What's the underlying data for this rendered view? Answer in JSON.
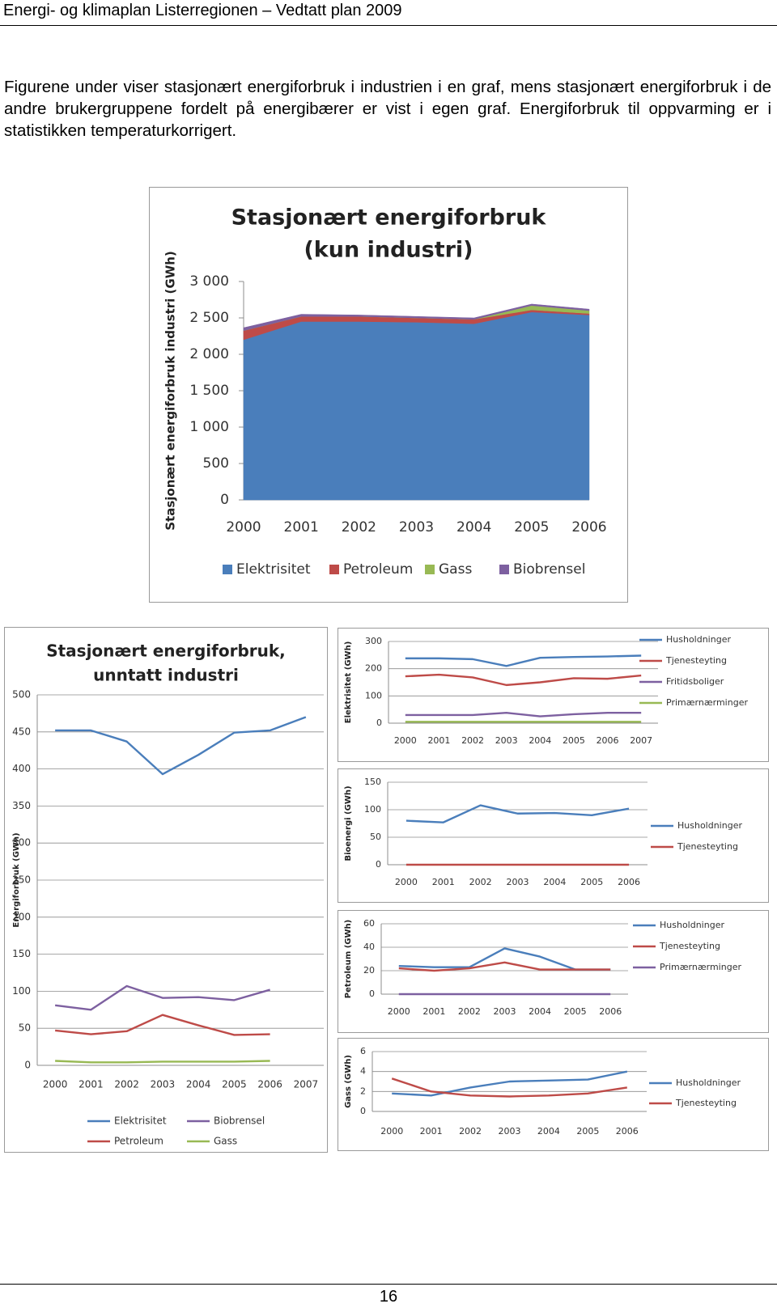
{
  "header": {
    "title": "Energi- og klimaplan Listerregionen – Vedtatt plan 2009"
  },
  "paragraph": "Figurene under viser stasjonært energiforbruk i industrien i en graf, mens stasjonært energiforbruk i de andre brukergruppene fordelt på energibærer er vist i egen graf. Energiforbruk til oppvarming er i statistikken temperaturkorrigert.",
  "page_number": "16",
  "chart_data": [
    {
      "type": "area",
      "stacked": true,
      "title": [
        "Stasjonært energiforbruk",
        "(kun industri)"
      ],
      "y_label": "Stasjonært energiforbruk industri (GWh)",
      "categories": [
        "2000",
        "2001",
        "2002",
        "2003",
        "2004",
        "2005",
        "2006"
      ],
      "series": [
        {
          "name": "Elektrisitet",
          "color": "#4a7ebb",
          "values": [
            2200,
            2450,
            2450,
            2440,
            2420,
            2580,
            2540
          ]
        },
        {
          "name": "Petroleum",
          "color": "#be4b48",
          "values": [
            125,
            70,
            70,
            60,
            60,
            30,
            20
          ]
        },
        {
          "name": "Gass",
          "color": "#98b954",
          "values": [
            0,
            0,
            0,
            0,
            0,
            60,
            40
          ]
        },
        {
          "name": "Biobrensel",
          "color": "#7d60a0",
          "values": [
            40,
            30,
            20,
            20,
            20,
            20,
            20
          ]
        }
      ],
      "ylim": [
        0,
        3000
      ],
      "yticks": [
        0,
        500,
        {
          "value": 1000,
          "label": "1 000"
        },
        {
          "value": 1500,
          "label": "1 500"
        },
        {
          "value": 2000,
          "label": "2 000"
        },
        {
          "value": 2500,
          "label": "2 500"
        },
        {
          "value": 3000,
          "label": "3 000"
        }
      ],
      "grid": false,
      "legend": "bottom"
    },
    {
      "type": "line",
      "title": [
        "Stasjonært energiforbruk,",
        "unntatt industri"
      ],
      "y_label": "Energiforbruk (GWh)",
      "categories": [
        "2000",
        "2001",
        "2002",
        "2003",
        "2004",
        "2005",
        "2006",
        "2007"
      ],
      "series": [
        {
          "name": "Elektrisitet",
          "color": "#4a7ebb",
          "values": [
            452,
            452,
            437,
            393,
            419,
            449,
            452,
            470
          ]
        },
        {
          "name": "Petroleum",
          "color": "#be4b48",
          "values": [
            47,
            42,
            46,
            68,
            54,
            41,
            42,
            null
          ]
        },
        {
          "name": "Biobrensel",
          "color": "#7d60a0",
          "values": [
            81,
            75,
            107,
            91,
            92,
            88,
            102,
            null
          ]
        },
        {
          "name": "Gass",
          "color": "#98b954",
          "values": [
            6,
            4,
            4,
            5,
            5,
            5,
            6,
            null
          ]
        }
      ],
      "ylim": [
        0,
        500
      ],
      "yticks": [
        0,
        50,
        100,
        150,
        200,
        250,
        300,
        350,
        400,
        450,
        500
      ],
      "grid": true,
      "legend": "bottom"
    },
    {
      "type": "line",
      "y_label": "Elektrisitet (GWh)",
      "categories": [
        "2000",
        "2001",
        "2002",
        "2003",
        "2004",
        "2005",
        "2006",
        "2007"
      ],
      "series": [
        {
          "name": "Husholdninger",
          "color": "#4a7ebb",
          "values": [
            238,
            238,
            235,
            210,
            240,
            243,
            245,
            248
          ]
        },
        {
          "name": "Tjenesteyting",
          "color": "#be4b48",
          "values": [
            172,
            178,
            168,
            140,
            150,
            165,
            163,
            175
          ]
        },
        {
          "name": "Fritidsboliger",
          "color": "#7d60a0",
          "values": [
            30,
            30,
            30,
            38,
            25,
            33,
            38,
            38
          ]
        },
        {
          "name": "Primærnærminger",
          "color": "#98b954",
          "values": [
            5,
            5,
            5,
            5,
            5,
            5,
            5,
            5
          ]
        }
      ],
      "ylim": [
        0,
        300
      ],
      "yticks": [
        0,
        100,
        200,
        300
      ],
      "grid": true,
      "legend": "right"
    },
    {
      "type": "line",
      "y_label": "Bioenergi (GWh)",
      "categories": [
        "2000",
        "2001",
        "2002",
        "2003",
        "2004",
        "2005",
        "2006"
      ],
      "series": [
        {
          "name": "Husholdninger",
          "color": "#4a7ebb",
          "values": [
            80,
            77,
            108,
            93,
            94,
            90,
            102
          ]
        },
        {
          "name": "Tjenesteyting",
          "color": "#be4b48",
          "values": [
            0,
            0,
            0,
            0,
            0,
            0,
            0
          ]
        }
      ],
      "ylim": [
        0,
        150
      ],
      "yticks": [
        0,
        50,
        100,
        150
      ],
      "grid": true,
      "legend": "right"
    },
    {
      "type": "line",
      "y_label": "Petroleum (GWh)",
      "categories": [
        "2000",
        "2001",
        "2002",
        "2003",
        "2004",
        "2005",
        "2006"
      ],
      "series": [
        {
          "name": "Husholdninger",
          "color": "#4a7ebb",
          "values": [
            24,
            23,
            23,
            39,
            32,
            21,
            21
          ]
        },
        {
          "name": "Tjenesteyting",
          "color": "#be4b48",
          "values": [
            22,
            20,
            22,
            27,
            21,
            21,
            21
          ]
        },
        {
          "name": "Primærnærminger",
          "color": "#7d60a0",
          "values": [
            0,
            0,
            0,
            0,
            0,
            0,
            0
          ]
        }
      ],
      "ylim": [
        0,
        60
      ],
      "yticks": [
        0,
        20,
        40,
        60
      ],
      "grid": true,
      "legend": "right"
    },
    {
      "type": "line",
      "y_label": "Gass (GWh)",
      "categories": [
        "2000",
        "2001",
        "2002",
        "2003",
        "2004",
        "2005",
        "2006"
      ],
      "series": [
        {
          "name": "Husholdninger",
          "color": "#4a7ebb",
          "values": [
            1.8,
            1.6,
            2.4,
            3.0,
            3.1,
            3.2,
            4.0
          ]
        },
        {
          "name": "Tjenesteyting",
          "color": "#be4b48",
          "values": [
            3.3,
            2.0,
            1.6,
            1.5,
            1.6,
            1.8,
            2.4
          ]
        }
      ],
      "ylim": [
        0,
        6
      ],
      "yticks": [
        0,
        2,
        4,
        6
      ],
      "grid": true,
      "legend": "right"
    }
  ]
}
